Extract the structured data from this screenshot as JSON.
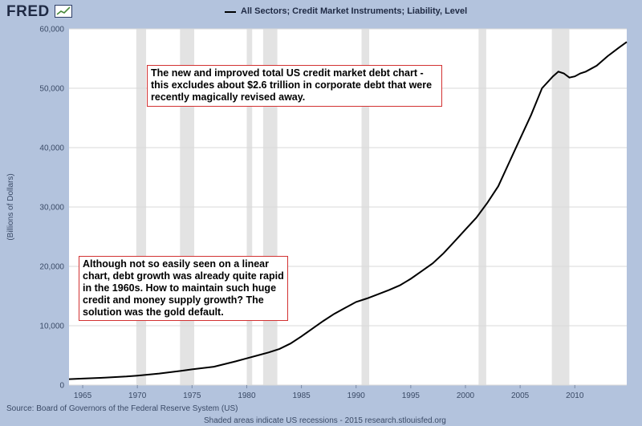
{
  "header": {
    "logo_text": "FRED",
    "series_title": "All Sectors; Credit Market Instruments; Liability, Level"
  },
  "footer": {
    "source": "Source: Board of Governors of the Federal Reserve System (US)",
    "shaded_note": "Shaded areas indicate US recessions - 2015 research.stlouisfed.org"
  },
  "annotations": {
    "top": "The new and improved total US credit market debt chart - this excludes about $2.6 trillion in corporate debt that were recently magically revised away.",
    "bottom": "Although not so easily seen on a linear chart, debt growth was already quite rapid in the 1960s. How to maintain such huge credit and money supply growth? The solution was the gold default."
  },
  "colors": {
    "page_background": "#b3c3dd",
    "plot_background": "#ffffff",
    "line": "#000000",
    "recession_band": "#e3e3e3",
    "annotation_border": "#d23232"
  },
  "chart_data": {
    "type": "line",
    "title": "All Sectors; Credit Market Instruments; Liability, Level",
    "ylabel": "(Billions of Dollars)",
    "xlabel": "",
    "xlim": [
      1963.75,
      2014.75
    ],
    "ylim": [
      0,
      60000
    ],
    "grid": true,
    "x_ticks": [
      1965,
      1970,
      1975,
      1980,
      1985,
      1990,
      1995,
      2000,
      2005,
      2010
    ],
    "x_tick_labels": [
      "1965",
      "1970",
      "1975",
      "1980",
      "1985",
      "1990",
      "1995",
      "2000",
      "2005",
      "2010"
    ],
    "y_ticks": [
      0,
      10000,
      20000,
      30000,
      40000,
      50000,
      60000
    ],
    "y_tick_labels": [
      "0",
      "10,000",
      "20,000",
      "30,000",
      "40,000",
      "50,000",
      "60,000"
    ],
    "recessions": [
      [
        1969.9,
        1970.8
      ],
      [
        1973.9,
        1975.2
      ],
      [
        1980.0,
        1980.5
      ],
      [
        1981.5,
        1982.8
      ],
      [
        1990.5,
        1991.2
      ],
      [
        2001.2,
        2001.9
      ],
      [
        2007.9,
        2009.5
      ]
    ],
    "series": [
      {
        "x": [
          1963.75,
          1965,
          1967,
          1969,
          1970,
          1972,
          1974,
          1975,
          1977,
          1979,
          1980,
          1981,
          1982,
          1983,
          1984,
          1985,
          1986,
          1987,
          1988,
          1989,
          1990,
          1991,
          1992,
          1993,
          1994,
          1995,
          1996,
          1997,
          1998,
          1999,
          2000,
          2001,
          2002,
          2003,
          2004,
          2005,
          2006,
          2007,
          2008,
          2008.5,
          2009,
          2009.5,
          2010,
          2010.5,
          2011,
          2012,
          2013,
          2014,
          2014.75
        ],
        "y": [
          1000,
          1100,
          1250,
          1450,
          1600,
          1950,
          2400,
          2650,
          3100,
          4000,
          4500,
          5000,
          5500,
          6100,
          7000,
          8200,
          9500,
          10800,
          12000,
          13000,
          14000,
          14600,
          15300,
          16000,
          16800,
          17900,
          19200,
          20500,
          22200,
          24200,
          26200,
          28200,
          30700,
          33500,
          37500,
          41500,
          45500,
          50000,
          52000,
          52800,
          52500,
          51800,
          52000,
          52500,
          52800,
          53800,
          55400,
          56800,
          57800
        ]
      }
    ]
  }
}
